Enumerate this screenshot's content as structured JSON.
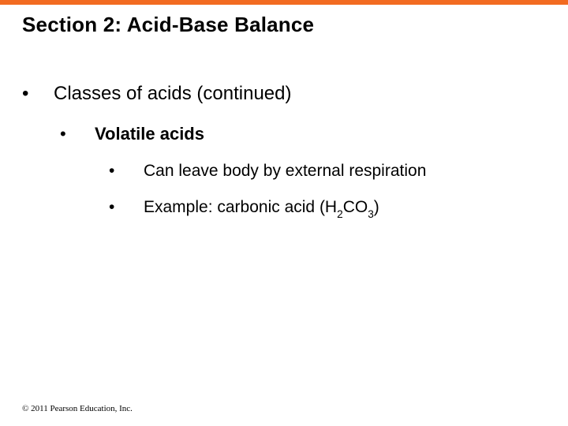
{
  "styling": {
    "top_bar_color": "#f26b21",
    "background_color": "#ffffff",
    "text_color": "#000000",
    "title_fontsize": 26,
    "lvl1_fontsize": 24,
    "lvl2_fontsize": 22,
    "lvl3_fontsize": 21,
    "copyright_fontsize": 11,
    "font_family_main": "Arial, Helvetica, sans-serif",
    "font_family_copyright": "Times New Roman, serif"
  },
  "title": "Section 2: Acid-Base Balance",
  "bullet_char": "•",
  "lvl1_text": "Classes of acids (continued)",
  "lvl2_text": "Volatile acids",
  "lvl3a_text": "Can leave body by external respiration",
  "lvl3b_prefix": "Example: carbonic acid (H",
  "lvl3b_sub1": "2",
  "lvl3b_mid": "CO",
  "lvl3b_sub2": "3",
  "lvl3b_suffix": ")",
  "copyright": "© 2011 Pearson Education, Inc."
}
